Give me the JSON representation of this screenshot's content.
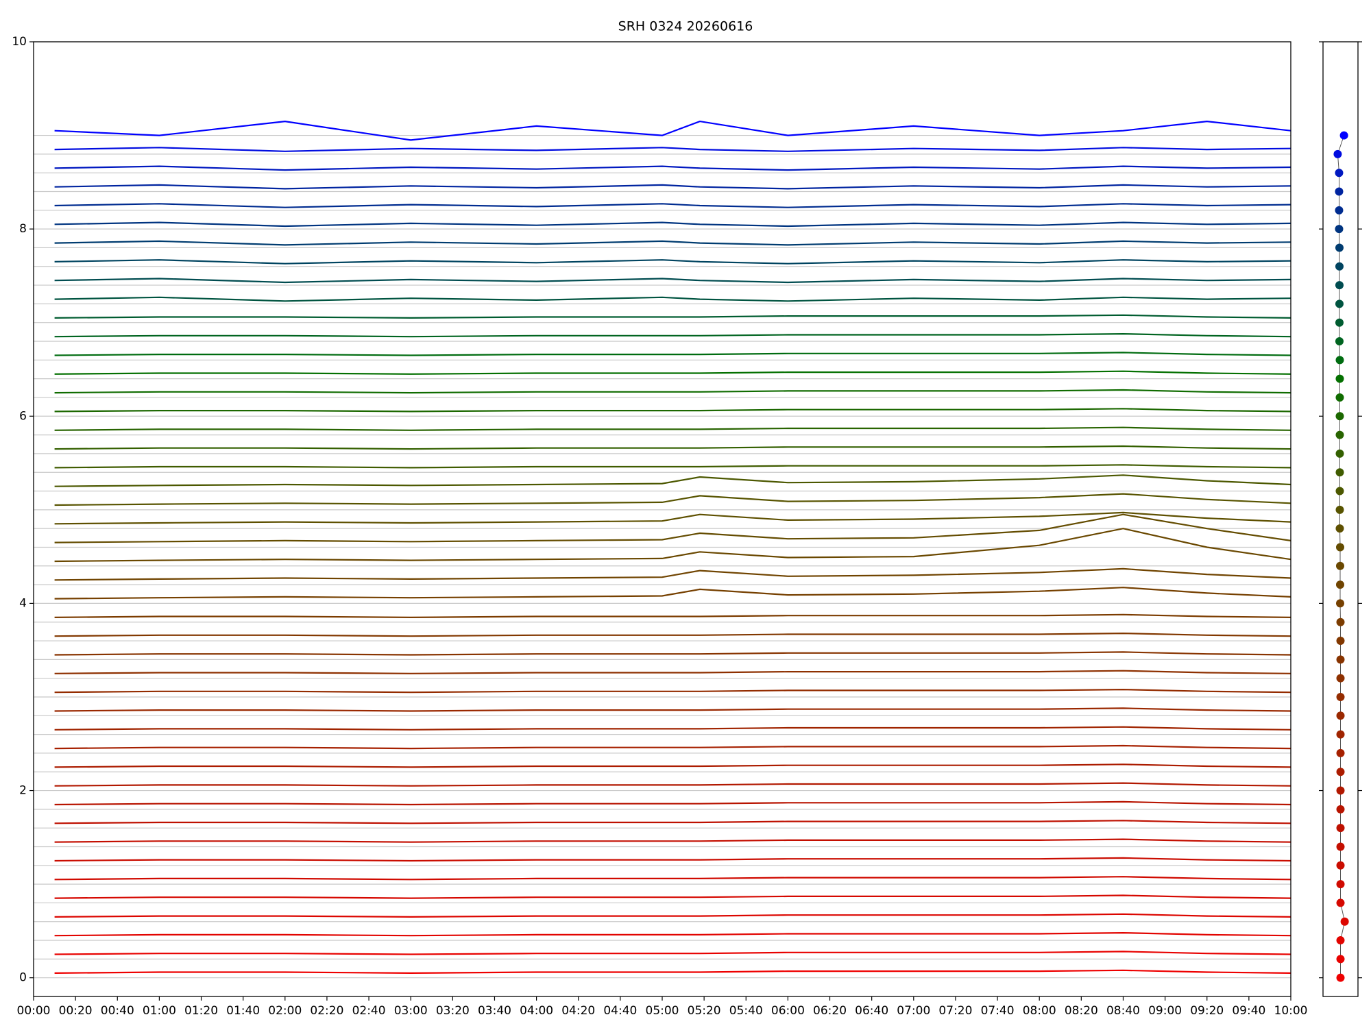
{
  "chart_data": [
    {
      "type": "line",
      "title": "SRH 0324 20260616",
      "x": [
        10,
        60,
        120,
        180,
        240,
        300,
        318,
        360,
        420,
        480,
        520,
        560,
        600
      ],
      "xlim": [
        0,
        600
      ],
      "xticks": [
        {
          "value": 0,
          "label": "00:00"
        },
        {
          "value": 20,
          "label": "00:20"
        },
        {
          "value": 40,
          "label": "00:40"
        },
        {
          "value": 60,
          "label": "01:00"
        },
        {
          "value": 80,
          "label": "01:20"
        },
        {
          "value": 100,
          "label": "01:40"
        },
        {
          "value": 120,
          "label": "02:00"
        },
        {
          "value": 140,
          "label": "02:20"
        },
        {
          "value": 160,
          "label": "02:40"
        },
        {
          "value": 180,
          "label": "03:00"
        },
        {
          "value": 200,
          "label": "03:20"
        },
        {
          "value": 220,
          "label": "03:40"
        },
        {
          "value": 240,
          "label": "04:00"
        },
        {
          "value": 260,
          "label": "04:20"
        },
        {
          "value": 280,
          "label": "04:40"
        },
        {
          "value": 300,
          "label": "05:00"
        },
        {
          "value": 320,
          "label": "05:20"
        },
        {
          "value": 340,
          "label": "05:40"
        },
        {
          "value": 360,
          "label": "06:00"
        },
        {
          "value": 380,
          "label": "06:20"
        },
        {
          "value": 400,
          "label": "06:40"
        },
        {
          "value": 420,
          "label": "07:00"
        },
        {
          "value": 440,
          "label": "07:20"
        },
        {
          "value": 460,
          "label": "07:40"
        },
        {
          "value": 480,
          "label": "08:00"
        },
        {
          "value": 500,
          "label": "08:20"
        },
        {
          "value": 520,
          "label": "08:40"
        },
        {
          "value": 540,
          "label": "09:00"
        },
        {
          "value": 560,
          "label": "09:20"
        },
        {
          "value": 580,
          "label": "09:40"
        },
        {
          "value": 600,
          "label": "10:00"
        }
      ],
      "ylim": [
        -0.2,
        10
      ],
      "yticks": [
        0,
        2,
        4,
        6,
        8,
        10
      ],
      "series": [
        {
          "color": "#ee0000",
          "values": [
            0.05,
            0.06,
            0.06,
            0.05,
            0.06,
            0.06,
            0.06,
            0.07,
            0.07,
            0.07,
            0.08,
            0.06,
            0.05
          ]
        },
        {
          "color": "#e80200",
          "values": [
            0.25,
            0.26,
            0.26,
            0.25,
            0.26,
            0.26,
            0.26,
            0.27,
            0.27,
            0.27,
            0.28,
            0.26,
            0.25
          ]
        },
        {
          "color": "#e20400",
          "values": [
            0.45,
            0.46,
            0.46,
            0.45,
            0.46,
            0.46,
            0.46,
            0.47,
            0.47,
            0.47,
            0.48,
            0.46,
            0.45
          ]
        },
        {
          "color": "#dc0600",
          "values": [
            0.65,
            0.66,
            0.66,
            0.65,
            0.66,
            0.66,
            0.66,
            0.67,
            0.67,
            0.67,
            0.68,
            0.66,
            0.65
          ]
        },
        {
          "color": "#d60800",
          "values": [
            0.85,
            0.86,
            0.86,
            0.85,
            0.86,
            0.86,
            0.86,
            0.87,
            0.87,
            0.87,
            0.88,
            0.86,
            0.85
          ]
        },
        {
          "color": "#d00a00",
          "values": [
            1.05,
            1.06,
            1.06,
            1.05,
            1.06,
            1.06,
            1.06,
            1.07,
            1.07,
            1.07,
            1.08,
            1.06,
            1.05
          ]
        },
        {
          "color": "#ca0c00",
          "values": [
            1.25,
            1.26,
            1.26,
            1.25,
            1.26,
            1.26,
            1.26,
            1.27,
            1.27,
            1.27,
            1.28,
            1.26,
            1.25
          ]
        },
        {
          "color": "#c40e00",
          "values": [
            1.45,
            1.46,
            1.46,
            1.45,
            1.46,
            1.46,
            1.46,
            1.47,
            1.47,
            1.47,
            1.48,
            1.46,
            1.45
          ]
        },
        {
          "color": "#be1000",
          "values": [
            1.65,
            1.66,
            1.66,
            1.65,
            1.66,
            1.66,
            1.66,
            1.67,
            1.67,
            1.67,
            1.68,
            1.66,
            1.65
          ]
        },
        {
          "color": "#b81400",
          "values": [
            1.85,
            1.86,
            1.86,
            1.85,
            1.86,
            1.86,
            1.86,
            1.87,
            1.87,
            1.87,
            1.88,
            1.86,
            1.85
          ]
        },
        {
          "color": "#b21800",
          "values": [
            2.05,
            2.06,
            2.06,
            2.05,
            2.06,
            2.06,
            2.06,
            2.07,
            2.07,
            2.07,
            2.08,
            2.06,
            2.05
          ]
        },
        {
          "color": "#ac1c00",
          "values": [
            2.25,
            2.26,
            2.26,
            2.25,
            2.26,
            2.26,
            2.26,
            2.27,
            2.27,
            2.27,
            2.28,
            2.26,
            2.25
          ]
        },
        {
          "color": "#a62000",
          "values": [
            2.45,
            2.46,
            2.46,
            2.45,
            2.46,
            2.46,
            2.46,
            2.47,
            2.47,
            2.47,
            2.48,
            2.46,
            2.45
          ]
        },
        {
          "color": "#a02400",
          "values": [
            2.65,
            2.66,
            2.66,
            2.65,
            2.66,
            2.66,
            2.66,
            2.67,
            2.67,
            2.67,
            2.68,
            2.66,
            2.65
          ]
        },
        {
          "color": "#9a2800",
          "values": [
            2.85,
            2.86,
            2.86,
            2.85,
            2.86,
            2.86,
            2.86,
            2.87,
            2.87,
            2.87,
            2.88,
            2.86,
            2.85
          ]
        },
        {
          "color": "#942c00",
          "values": [
            3.05,
            3.06,
            3.06,
            3.05,
            3.06,
            3.06,
            3.06,
            3.07,
            3.07,
            3.07,
            3.08,
            3.06,
            3.05
          ]
        },
        {
          "color": "#8e3000",
          "values": [
            3.25,
            3.26,
            3.26,
            3.25,
            3.26,
            3.26,
            3.26,
            3.27,
            3.27,
            3.27,
            3.28,
            3.26,
            3.25
          ]
        },
        {
          "color": "#883400",
          "values": [
            3.45,
            3.46,
            3.46,
            3.45,
            3.46,
            3.46,
            3.46,
            3.47,
            3.47,
            3.47,
            3.48,
            3.46,
            3.45
          ]
        },
        {
          "color": "#823800",
          "values": [
            3.65,
            3.66,
            3.66,
            3.65,
            3.66,
            3.66,
            3.66,
            3.67,
            3.67,
            3.67,
            3.68,
            3.66,
            3.65
          ]
        },
        {
          "color": "#7c3c00",
          "values": [
            3.85,
            3.86,
            3.86,
            3.85,
            3.86,
            3.86,
            3.86,
            3.87,
            3.87,
            3.87,
            3.88,
            3.86,
            3.85
          ]
        },
        {
          "color": "#764000",
          "values": [
            4.05,
            4.06,
            4.07,
            4.06,
            4.07,
            4.08,
            4.15,
            4.09,
            4.1,
            4.13,
            4.17,
            4.11,
            4.07
          ]
        },
        {
          "color": "#704400",
          "values": [
            4.25,
            4.26,
            4.27,
            4.26,
            4.27,
            4.28,
            4.35,
            4.29,
            4.3,
            4.33,
            4.37,
            4.31,
            4.27
          ]
        },
        {
          "color": "#6a4800",
          "values": [
            4.45,
            4.46,
            4.47,
            4.46,
            4.47,
            4.48,
            4.55,
            4.49,
            4.5,
            4.62,
            4.8,
            4.6,
            4.47
          ]
        },
        {
          "color": "#644c00",
          "values": [
            4.65,
            4.66,
            4.67,
            4.66,
            4.67,
            4.68,
            4.75,
            4.69,
            4.7,
            4.78,
            4.95,
            4.8,
            4.67
          ]
        },
        {
          "color": "#5e5000",
          "values": [
            4.85,
            4.86,
            4.87,
            4.86,
            4.87,
            4.88,
            4.95,
            4.89,
            4.9,
            4.93,
            4.97,
            4.91,
            4.87
          ]
        },
        {
          "color": "#585400",
          "values": [
            5.05,
            5.06,
            5.07,
            5.06,
            5.07,
            5.08,
            5.15,
            5.09,
            5.1,
            5.13,
            5.17,
            5.11,
            5.07
          ]
        },
        {
          "color": "#4c5800",
          "values": [
            5.25,
            5.26,
            5.27,
            5.26,
            5.27,
            5.28,
            5.35,
            5.29,
            5.3,
            5.33,
            5.37,
            5.31,
            5.27
          ]
        },
        {
          "color": "#405c00",
          "values": [
            5.45,
            5.46,
            5.46,
            5.45,
            5.46,
            5.46,
            5.46,
            5.47,
            5.47,
            5.47,
            5.48,
            5.46,
            5.45
          ]
        },
        {
          "color": "#346000",
          "values": [
            5.65,
            5.66,
            5.66,
            5.65,
            5.66,
            5.66,
            5.66,
            5.67,
            5.67,
            5.67,
            5.68,
            5.66,
            5.65
          ]
        },
        {
          "color": "#286400",
          "values": [
            5.85,
            5.86,
            5.86,
            5.85,
            5.86,
            5.86,
            5.86,
            5.87,
            5.87,
            5.87,
            5.88,
            5.86,
            5.85
          ]
        },
        {
          "color": "#1c6800",
          "values": [
            6.05,
            6.06,
            6.06,
            6.05,
            6.06,
            6.06,
            6.06,
            6.07,
            6.07,
            6.07,
            6.08,
            6.06,
            6.05
          ]
        },
        {
          "color": "#106c00",
          "values": [
            6.25,
            6.26,
            6.26,
            6.25,
            6.26,
            6.26,
            6.26,
            6.27,
            6.27,
            6.27,
            6.28,
            6.26,
            6.25
          ]
        },
        {
          "color": "#047000",
          "values": [
            6.45,
            6.46,
            6.46,
            6.45,
            6.46,
            6.46,
            6.46,
            6.47,
            6.47,
            6.47,
            6.48,
            6.46,
            6.45
          ]
        },
        {
          "color": "#006c10",
          "values": [
            6.65,
            6.66,
            6.66,
            6.65,
            6.66,
            6.66,
            6.66,
            6.67,
            6.67,
            6.67,
            6.68,
            6.66,
            6.65
          ]
        },
        {
          "color": "#006420",
          "values": [
            6.85,
            6.86,
            6.86,
            6.85,
            6.86,
            6.86,
            6.86,
            6.87,
            6.87,
            6.87,
            6.88,
            6.86,
            6.85
          ]
        },
        {
          "color": "#005c30",
          "values": [
            7.05,
            7.06,
            7.06,
            7.05,
            7.06,
            7.06,
            7.06,
            7.07,
            7.07,
            7.07,
            7.08,
            7.06,
            7.05
          ]
        },
        {
          "color": "#005440",
          "values": [
            7.25,
            7.27,
            7.23,
            7.26,
            7.24,
            7.27,
            7.25,
            7.23,
            7.26,
            7.24,
            7.27,
            7.25,
            7.26
          ]
        },
        {
          "color": "#004c50",
          "values": [
            7.45,
            7.47,
            7.43,
            7.46,
            7.44,
            7.47,
            7.45,
            7.43,
            7.46,
            7.44,
            7.47,
            7.45,
            7.46
          ]
        },
        {
          "color": "#004460",
          "values": [
            7.65,
            7.67,
            7.63,
            7.66,
            7.64,
            7.67,
            7.65,
            7.63,
            7.66,
            7.64,
            7.67,
            7.65,
            7.66
          ]
        },
        {
          "color": "#003c70",
          "values": [
            7.85,
            7.87,
            7.83,
            7.86,
            7.84,
            7.87,
            7.85,
            7.83,
            7.86,
            7.84,
            7.87,
            7.85,
            7.86
          ]
        },
        {
          "color": "#003480",
          "values": [
            8.05,
            8.07,
            8.03,
            8.06,
            8.04,
            8.07,
            8.05,
            8.03,
            8.06,
            8.04,
            8.07,
            8.05,
            8.06
          ]
        },
        {
          "color": "#002c90",
          "values": [
            8.25,
            8.27,
            8.23,
            8.26,
            8.24,
            8.27,
            8.25,
            8.23,
            8.26,
            8.24,
            8.27,
            8.25,
            8.26
          ]
        },
        {
          "color": "#0024a0",
          "values": [
            8.45,
            8.47,
            8.43,
            8.46,
            8.44,
            8.47,
            8.45,
            8.43,
            8.46,
            8.44,
            8.47,
            8.45,
            8.46
          ]
        },
        {
          "color": "#0018c0",
          "values": [
            8.65,
            8.67,
            8.63,
            8.66,
            8.64,
            8.67,
            8.65,
            8.63,
            8.66,
            8.64,
            8.67,
            8.65,
            8.66
          ]
        },
        {
          "color": "#000ce0",
          "values": [
            8.85,
            8.87,
            8.83,
            8.86,
            8.84,
            8.87,
            8.85,
            8.83,
            8.86,
            8.84,
            8.87,
            8.85,
            8.86
          ]
        },
        {
          "color": "#0000ff",
          "values": [
            9.05,
            9.0,
            9.15,
            8.95,
            9.1,
            9.0,
            9.15,
            9.0,
            9.1,
            9.0,
            9.05,
            9.15,
            9.05
          ]
        }
      ]
    },
    {
      "type": "scatter",
      "xlim": [
        0,
        1
      ],
      "ylim": [
        -0.2,
        10
      ],
      "yticks": [
        0,
        2,
        4,
        6,
        8,
        10
      ],
      "x": [
        0.5,
        0.5,
        0.5,
        0.62,
        0.5,
        0.5,
        0.5,
        0.5,
        0.5,
        0.5,
        0.5,
        0.5,
        0.5,
        0.5,
        0.5,
        0.5,
        0.5,
        0.5,
        0.5,
        0.5,
        0.49,
        0.49,
        0.49,
        0.49,
        0.48,
        0.48,
        0.48,
        0.48,
        0.48,
        0.48,
        0.48,
        0.48,
        0.48,
        0.48,
        0.47,
        0.47,
        0.47,
        0.47,
        0.47,
        0.47,
        0.46,
        0.46,
        0.46,
        0.46,
        0.42,
        0.6
      ],
      "y": [
        0,
        0.2,
        0.4,
        0.6,
        0.8,
        1.0,
        1.2,
        1.4,
        1.6,
        1.8,
        2.0,
        2.2,
        2.4,
        2.6,
        2.8,
        3.0,
        3.2,
        3.4,
        3.6,
        3.8,
        4.0,
        4.2,
        4.4,
        4.6,
        4.8,
        5.0,
        5.2,
        5.4,
        5.6,
        5.8,
        6.0,
        6.2,
        6.4,
        6.6,
        6.8,
        7.0,
        7.2,
        7.4,
        7.6,
        7.8,
        8.0,
        8.2,
        8.4,
        8.6,
        8.8,
        9.0
      ]
    }
  ]
}
